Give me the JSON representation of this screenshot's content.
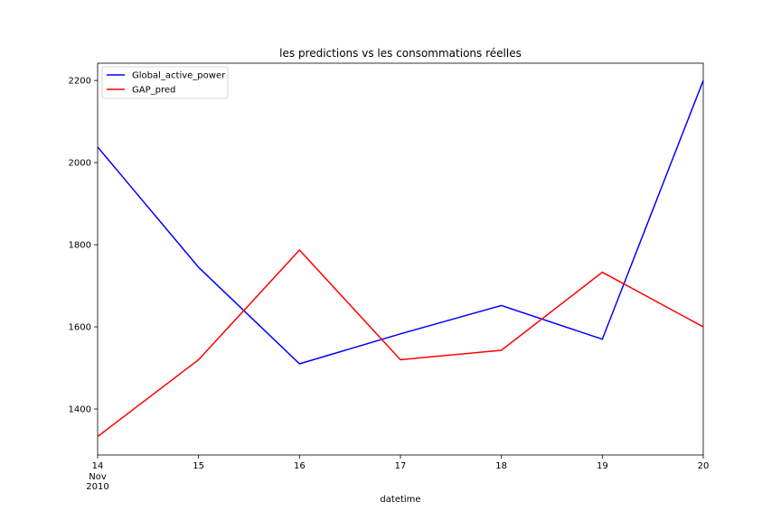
{
  "chart_data": {
    "type": "line",
    "title": "les predictions vs les consommations réelles",
    "xlabel": "datetime",
    "ylabel": "",
    "x_ticks": [
      "14",
      "15",
      "16",
      "17",
      "18",
      "19",
      "20"
    ],
    "x_tick_sub": [
      "Nov",
      "2010"
    ],
    "x": [
      14,
      15,
      16,
      17,
      18,
      19,
      20
    ],
    "xlim": [
      14,
      20
    ],
    "y_ticks": [
      1400,
      1600,
      1800,
      2000,
      2200
    ],
    "ylim": [
      1288,
      2242
    ],
    "grid": false,
    "legend_position": "top-left",
    "series": [
      {
        "name": "Global_active_power",
        "color": "#0000ff",
        "values": [
          2038,
          1745,
          1510,
          1583,
          1652,
          1570,
          2200
        ]
      },
      {
        "name": "GAP_pred",
        "color": "#ff0000",
        "values": [
          1333,
          1520,
          1787,
          1520,
          1543,
          1733,
          1600
        ]
      }
    ]
  }
}
